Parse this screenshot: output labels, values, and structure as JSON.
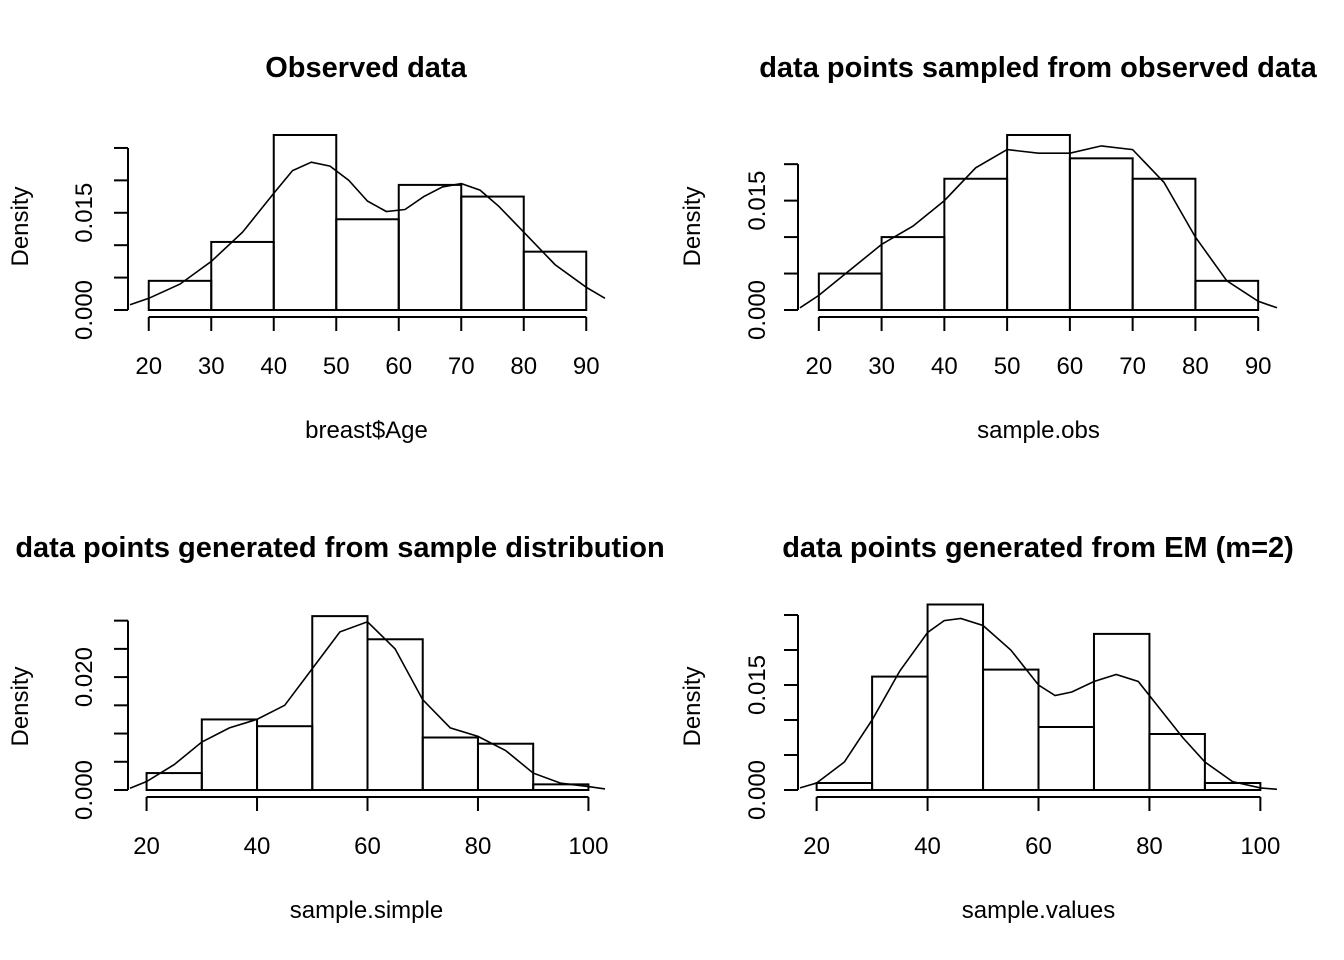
{
  "chart_data": [
    {
      "type": "bar",
      "title": "Observed data",
      "xlabel": "breast$Age",
      "ylabel": "Density",
      "breaks": [
        20,
        30,
        40,
        50,
        60,
        70,
        80,
        90
      ],
      "values": [
        0.0045,
        0.0105,
        0.027,
        0.014,
        0.0193,
        0.0175,
        0.009
      ],
      "x_ticks": [
        20,
        30,
        40,
        50,
        60,
        70,
        80,
        90
      ],
      "y_ticks": [
        0.0,
        0.005,
        0.01,
        0.015,
        0.02,
        0.025
      ],
      "y_tick_labels": [
        "0.000",
        "",
        "",
        "0.015",
        "",
        ""
      ],
      "xlim": [
        17,
        93
      ],
      "ylim": [
        0,
        0.027
      ],
      "density": {
        "x": [
          17,
          20,
          25,
          30,
          35,
          40,
          43,
          46,
          49,
          52,
          55,
          58,
          61,
          64,
          67,
          70,
          73,
          76,
          80,
          85,
          90,
          93
        ],
        "y": [
          0.0008,
          0.0018,
          0.004,
          0.0075,
          0.012,
          0.018,
          0.0215,
          0.0228,
          0.0222,
          0.02,
          0.0168,
          0.0152,
          0.0155,
          0.0175,
          0.019,
          0.0195,
          0.0185,
          0.016,
          0.012,
          0.007,
          0.0035,
          0.0018
        ]
      }
    },
    {
      "type": "bar",
      "title": "data points sampled from observed data",
      "xlabel": "sample.obs",
      "ylabel": "Density",
      "breaks": [
        20,
        30,
        40,
        50,
        60,
        70,
        80,
        90
      ],
      "values": [
        0.005,
        0.01,
        0.018,
        0.024,
        0.0208,
        0.018,
        0.004
      ],
      "x_ticks": [
        20,
        30,
        40,
        50,
        60,
        70,
        80,
        90
      ],
      "y_ticks": [
        0.0,
        0.005,
        0.01,
        0.015,
        0.02
      ],
      "y_tick_labels": [
        "0.000",
        "",
        "",
        "0.015",
        ""
      ],
      "xlim": [
        17,
        93
      ],
      "ylim": [
        0,
        0.024
      ],
      "density": {
        "x": [
          17,
          20,
          25,
          30,
          35,
          40,
          45,
          50,
          55,
          60,
          65,
          70,
          75,
          80,
          85,
          90,
          93
        ],
        "y": [
          0.0003,
          0.002,
          0.0055,
          0.009,
          0.0115,
          0.015,
          0.0195,
          0.022,
          0.0215,
          0.0215,
          0.0225,
          0.022,
          0.0175,
          0.01,
          0.004,
          0.0012,
          0.0003
        ]
      }
    },
    {
      "type": "bar",
      "title": "data points generated from sample distribution",
      "xlabel": "sample.simple",
      "ylabel": "Density",
      "breaks": [
        20,
        30,
        40,
        50,
        60,
        70,
        80,
        90,
        100
      ],
      "values": [
        0.003,
        0.0125,
        0.0113,
        0.0308,
        0.0267,
        0.0093,
        0.0082,
        0.001
      ],
      "x_ticks": [
        20,
        40,
        60,
        80,
        100
      ],
      "y_ticks": [
        0.0,
        0.005,
        0.01,
        0.015,
        0.02,
        0.025,
        0.03
      ],
      "y_tick_labels": [
        "0.000",
        "",
        "",
        "",
        "0.020",
        "",
        ""
      ],
      "xlim": [
        17,
        103
      ],
      "ylim": [
        0,
        0.031
      ],
      "density": {
        "x": [
          17,
          20,
          25,
          30,
          35,
          40,
          45,
          50,
          55,
          60,
          65,
          70,
          75,
          80,
          85,
          90,
          95,
          100,
          103
        ],
        "y": [
          0.0003,
          0.0015,
          0.0045,
          0.0085,
          0.011,
          0.0125,
          0.015,
          0.0215,
          0.028,
          0.0298,
          0.025,
          0.016,
          0.011,
          0.0095,
          0.007,
          0.003,
          0.0012,
          0.0006,
          0.0002
        ]
      }
    },
    {
      "type": "bar",
      "title": "data points generated from EM (m=2)",
      "xlabel": "sample.values",
      "ylabel": "Density",
      "breaks": [
        20,
        30,
        40,
        50,
        60,
        70,
        80,
        90,
        100
      ],
      "values": [
        0.001,
        0.0162,
        0.0265,
        0.0172,
        0.009,
        0.0223,
        0.008,
        0.001
      ],
      "x_ticks": [
        20,
        40,
        60,
        80,
        100
      ],
      "y_ticks": [
        0.0,
        0.005,
        0.01,
        0.015,
        0.02,
        0.025
      ],
      "y_tick_labels": [
        "0.000",
        "",
        "",
        "0.015",
        "",
        ""
      ],
      "xlim": [
        17,
        103
      ],
      "ylim": [
        0,
        0.025
      ],
      "density": {
        "x": [
          17,
          20,
          25,
          30,
          35,
          40,
          43,
          46,
          50,
          55,
          60,
          63,
          66,
          70,
          74,
          78,
          82,
          86,
          90,
          95,
          100,
          103
        ],
        "y": [
          0.0003,
          0.001,
          0.004,
          0.01,
          0.017,
          0.0225,
          0.0242,
          0.0245,
          0.0235,
          0.02,
          0.015,
          0.0135,
          0.014,
          0.0155,
          0.0165,
          0.0155,
          0.0115,
          0.0075,
          0.004,
          0.0012,
          0.0003,
          0.0001
        ]
      }
    }
  ]
}
